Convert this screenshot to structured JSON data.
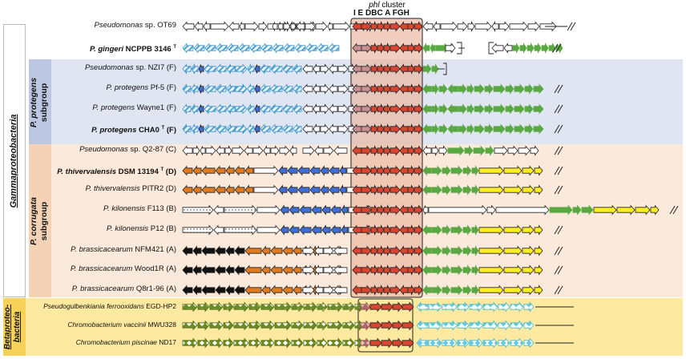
{
  "cluster": {
    "title_italic": "phl",
    "title_rest": " cluster",
    "gene_letters": [
      "I",
      "E",
      "D",
      "B",
      "C",
      "A",
      "F",
      "G",
      "H"
    ],
    "gene_header": "I E DBC A FGH"
  },
  "groups": {
    "gamma": "Gammaproteobacteria",
    "beta": "Betaproteo-bacteria",
    "beta_line1": "Betaproteo-",
    "beta_line2": "bacteria",
    "protegens_line1": "P. protegens",
    "protegens_line2": "subgroup",
    "corrugata_line1": "P. corrugata",
    "corrugata_line2": "subgroup"
  },
  "strains": [
    {
      "name": "Pseudomonas sp. OT69",
      "italic": "Pseudomonas",
      "rest": " sp. OT69",
      "bold": false
    },
    {
      "name": "P. gingeri NCPPB 3146 T",
      "italic": "P. gingeri",
      "rest": " NCPPB 3146 ",
      "sup": "T",
      "bold": true
    },
    {
      "name": "Pseudomonas sp. NZI7 (F)",
      "italic": "Pseudomonas",
      "rest": " sp. NZI7 (F)",
      "bold": false
    },
    {
      "name": "P. protegens Pf-5 (F)",
      "italic": "P. protegens",
      "rest": " Pf-5 (F)",
      "bold": false
    },
    {
      "name": "P. protegens Wayne1 (F)",
      "italic": "P. protegens",
      "rest": " Wayne1 (F)",
      "bold": false
    },
    {
      "name": "P. protegens CHA0 T (F)",
      "italic": "P. protegens",
      "rest": " CHA0 ",
      "sup": "T",
      "rest2": " (F)",
      "bold": true
    },
    {
      "name": "Pseudomonas sp. Q2-87 (C)",
      "italic": "Pseudomonas",
      "rest": " sp. Q2-87 (C)",
      "bold": false
    },
    {
      "name": "P. thivervalensis DSM 13194 T (D)",
      "italic": "P. thivervalensis",
      "rest": " DSM 13194 ",
      "sup": "T",
      "rest2": " (D)",
      "bold": true
    },
    {
      "name": "P. thivervalensis PITR2 (D)",
      "italic": "P. thivervalensis",
      "rest": " PITR2 (D)",
      "bold": false
    },
    {
      "name": "P. kilonensis F113 (B)",
      "italic": "P. kilonensis",
      "rest": " F113 (B)",
      "bold": false
    },
    {
      "name": "P. kilonensis P12 (B)",
      "italic": "P. kilonensis",
      "rest": " P12 (B)",
      "bold": false
    },
    {
      "name": "P. brassicacearum NFM421 (A)",
      "italic": "P. brassicacearum",
      "rest": " NFM421 (A)",
      "bold": false
    },
    {
      "name": "P. brassicacearum Wood1R (A)",
      "italic": "P. brassicacearum",
      "rest": " Wood1R (A)",
      "bold": false
    },
    {
      "name": "P. brassicacearum Q8r1-96 (A)",
      "italic": "P. brassicacearum",
      "rest": " Q8r1-96 (A)",
      "bold": false
    },
    {
      "name": "Pseudogulbenkiania ferrooxidans EGD-HP2",
      "italic": "Pseudogulbenkiania ferrooxidans",
      "rest": " EGD-HP2",
      "bold": false
    },
    {
      "name": "Chromobacterium vaccinii MWU328",
      "italic": "Chromobacterium vaccinii",
      "rest": " MWU328",
      "bold": false
    },
    {
      "name": "Chromobacterium piscinae ND17",
      "italic": "Chromobacterium piscinae",
      "rest": " ND17",
      "bold": false
    }
  ],
  "colors": {
    "protegens_band": "#dfe6f2",
    "protegens_label_bg": "#bcc8e2",
    "corrugata_band": "#fbeadb",
    "corrugata_label_bg": "#f3d2b5",
    "beta_band": "#fde9a0",
    "beta_label_bg": "#f7d25a",
    "cluster_box": "#e9b39d",
    "phl_red": "#d9452f",
    "phl_pink": "#c98f93",
    "flank_green": "#5aa843",
    "flank_yellow": "#ffee22",
    "flank_orange": "#e07b1f",
    "flank_blue": "#3d6fd6",
    "flank_black": "#111111",
    "hatch_blue": "#4aa6d9",
    "olive_green": "#6b8e23",
    "cyan_diamond": "#64cce0"
  },
  "icons": [
    "break-mark-icon",
    "gene-arrow-icon"
  ]
}
